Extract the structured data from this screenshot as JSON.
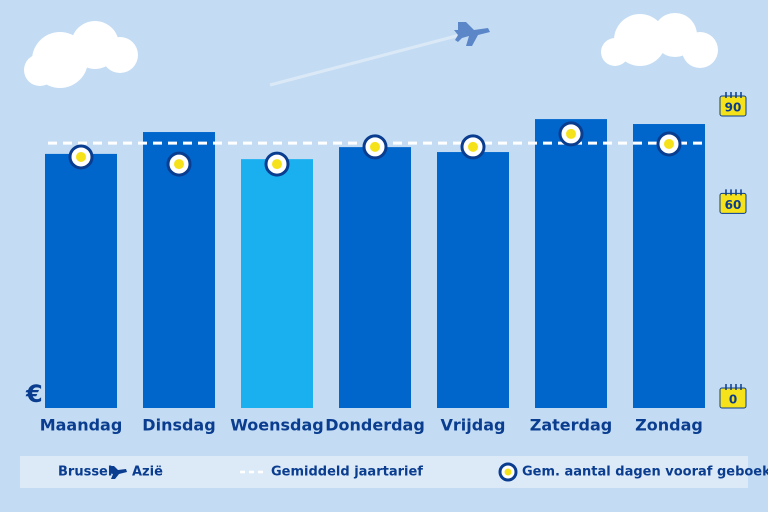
{
  "chart_data": {
    "type": "bar",
    "y_label": "€",
    "categories": [
      "Maandag",
      "Dinsdag",
      "Woensdag",
      "Donderdag",
      "Vrijdag",
      "Zaterdag",
      "Zondag"
    ],
    "values": [
      82.5,
      89.6,
      80.8,
      84.7,
      83.1,
      93.8,
      92.2
    ],
    "colors": [
      "#0066cc",
      "#0066cc",
      "#1ab0f0",
      "#0066cc",
      "#0066cc",
      "#0066cc",
      "#0066cc"
    ],
    "ylim": [
      0,
      100
    ],
    "route": {
      "from": "Brussel",
      "to": "Azië"
    },
    "average": {
      "name": "Gemiddeld jaartarief",
      "value": 86.0,
      "color": "#ffffff"
    },
    "series": [
      {
        "name": "Gem. aantal dagen vooraf geboekt",
        "color": "#f5e21a",
        "axis": "y2",
        "values": [
          74.3,
          72.1,
          72.1,
          77.4,
          77.4,
          81.4,
          78.3
        ]
      }
    ],
    "y2lim": [
      0,
      90
    ],
    "y2ticks": [
      0,
      60,
      90
    ]
  }
}
